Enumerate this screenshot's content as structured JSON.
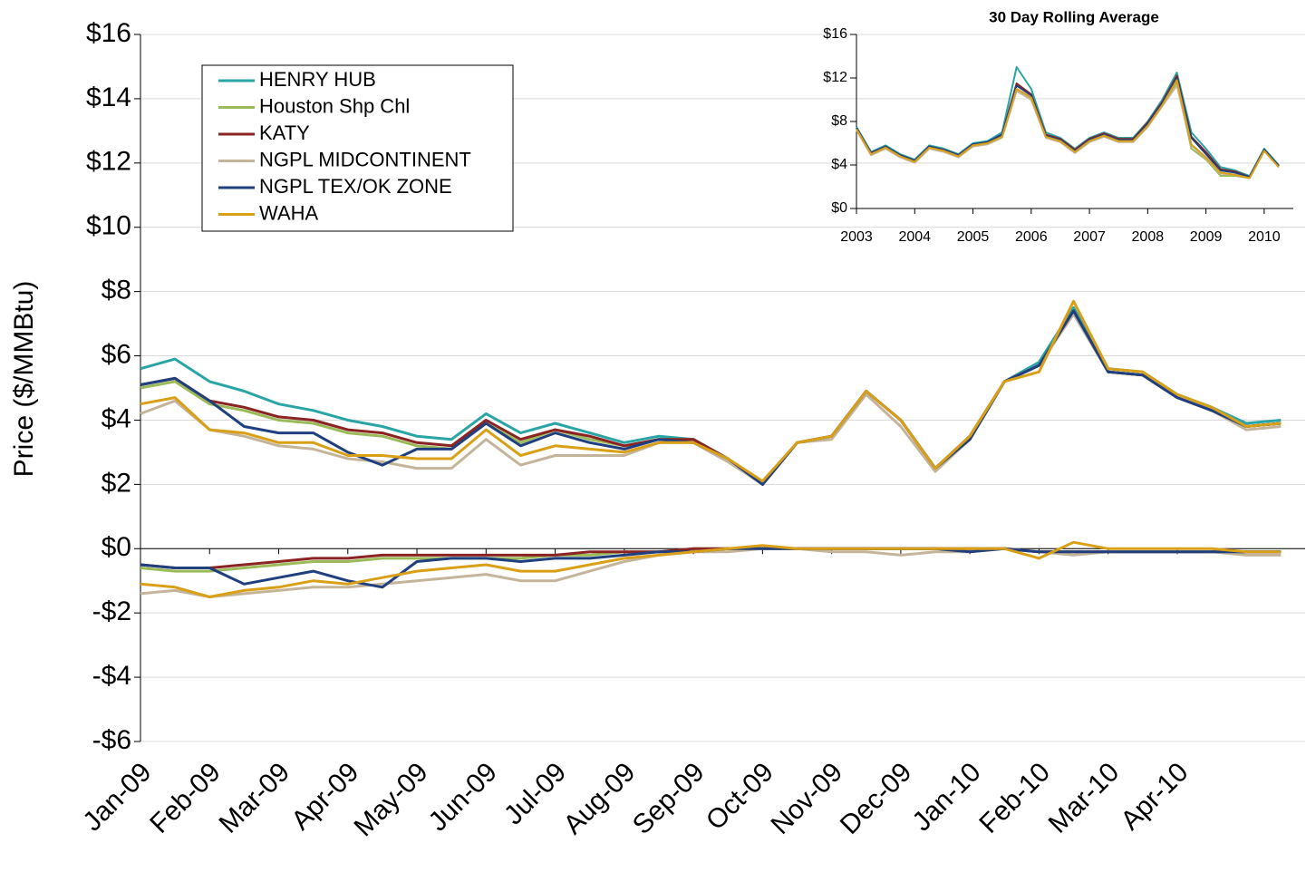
{
  "chart_data": [
    {
      "type": "line",
      "y_label": "Price ($/MMBtu)",
      "x": [
        0,
        0.5,
        1,
        1.5,
        2,
        2.5,
        3,
        3.5,
        4,
        4.5,
        5,
        5.5,
        6,
        6.5,
        7,
        7.5,
        8,
        8.5,
        9,
        9.5,
        10,
        10.5,
        11,
        11.5,
        12,
        12.5,
        13,
        13.5,
        14,
        14.5,
        15,
        15.5,
        16,
        16.5
      ],
      "xlim": [
        0,
        16.85
      ],
      "xticks": [
        {
          "value": 0,
          "label": "Jan-09"
        },
        {
          "value": 1,
          "label": "Feb-09"
        },
        {
          "value": 2,
          "label": "Mar-09"
        },
        {
          "value": 3,
          "label": "Apr-09"
        },
        {
          "value": 4,
          "label": "May-09"
        },
        {
          "value": 5,
          "label": "Jun-09"
        },
        {
          "value": 6,
          "label": "Jul-09"
        },
        {
          "value": 7,
          "label": "Aug-09"
        },
        {
          "value": 8,
          "label": "Sep-09"
        },
        {
          "value": 9,
          "label": "Oct-09"
        },
        {
          "value": 10,
          "label": "Nov-09"
        },
        {
          "value": 11,
          "label": "Dec-09"
        },
        {
          "value": 12,
          "label": "Jan-10"
        },
        {
          "value": 13,
          "label": "Feb-10"
        },
        {
          "value": 14,
          "label": "Mar-10"
        },
        {
          "value": 15,
          "label": "Apr-10"
        }
      ],
      "ylim": [
        -6,
        16
      ],
      "yticks": [
        {
          "value": -6,
          "label": "-$6"
        },
        {
          "value": -4,
          "label": "-$4"
        },
        {
          "value": -2,
          "label": "-$2"
        },
        {
          "value": 0,
          "label": "$0"
        },
        {
          "value": 2,
          "label": "$2"
        },
        {
          "value": 4,
          "label": "$4"
        },
        {
          "value": 6,
          "label": "$6"
        },
        {
          "value": 8,
          "label": "$8"
        },
        {
          "value": 10,
          "label": "$10"
        },
        {
          "value": 12,
          "label": "$12"
        },
        {
          "value": 14,
          "label": "$14"
        },
        {
          "value": 16,
          "label": "$16"
        }
      ],
      "grid": true,
      "series": [
        {
          "name": "HENRY HUB",
          "color": "#2aa5a5",
          "values": [
            5.6,
            5.9,
            5.2,
            4.9,
            4.5,
            4.3,
            4.0,
            3.8,
            3.5,
            3.4,
            4.2,
            3.6,
            3.9,
            3.6,
            3.3,
            3.5,
            3.4,
            2.8,
            2.0,
            3.3,
            3.5,
            4.9,
            4.0,
            2.5,
            3.5,
            5.2,
            5.8,
            7.5,
            5.6,
            5.5,
            4.8,
            4.4,
            3.9,
            4.0
          ]
        },
        {
          "name": "Houston Shp Chl",
          "color": "#9bbb59",
          "values": [
            5.0,
            5.2,
            4.5,
            4.3,
            4.0,
            3.9,
            3.6,
            3.5,
            3.2,
            3.1,
            3.9,
            3.3,
            3.7,
            3.4,
            3.2,
            3.4,
            3.4,
            2.8,
            2.0,
            3.3,
            3.5,
            4.9,
            4.0,
            2.5,
            3.5,
            5.2,
            5.7,
            7.4,
            5.5,
            5.4,
            4.7,
            4.3,
            3.8,
            3.9
          ]
        },
        {
          "name": "KATY",
          "color": "#8b2323",
          "values": [
            5.1,
            5.3,
            4.6,
            4.4,
            4.1,
            4.0,
            3.7,
            3.6,
            3.3,
            3.2,
            4.0,
            3.4,
            3.7,
            3.5,
            3.2,
            3.4,
            3.4,
            2.8,
            2.0,
            3.3,
            3.5,
            4.9,
            4.0,
            2.5,
            3.5,
            5.2,
            5.7,
            7.4,
            5.5,
            5.4,
            4.7,
            4.3,
            3.8,
            3.9
          ]
        },
        {
          "name": "NGPL MIDCONTINENT",
          "color": "#c4b59a",
          "values": [
            4.2,
            4.6,
            3.7,
            3.5,
            3.2,
            3.1,
            2.8,
            2.7,
            2.5,
            2.5,
            3.4,
            2.6,
            2.9,
            2.9,
            2.9,
            3.3,
            3.3,
            2.7,
            2.0,
            3.3,
            3.4,
            4.8,
            3.8,
            2.4,
            3.4,
            5.2,
            5.7,
            7.3,
            5.5,
            5.4,
            4.7,
            4.3,
            3.7,
            3.8
          ]
        },
        {
          "name": "NGPL TEX/OK ZONE",
          "color": "#1f3f7f",
          "values": [
            5.1,
            5.3,
            4.6,
            3.8,
            3.6,
            3.6,
            3.0,
            2.6,
            3.1,
            3.1,
            3.9,
            3.2,
            3.6,
            3.3,
            3.1,
            3.4,
            3.3,
            2.8,
            2.0,
            3.3,
            3.5,
            4.9,
            4.0,
            2.5,
            3.4,
            5.2,
            5.7,
            7.4,
            5.5,
            5.4,
            4.7,
            4.3,
            3.8,
            3.9
          ]
        },
        {
          "name": "WAHA",
          "color": "#d9a017",
          "values": [
            4.5,
            4.7,
            3.7,
            3.6,
            3.3,
            3.3,
            2.9,
            2.9,
            2.8,
            2.8,
            3.7,
            2.9,
            3.2,
            3.1,
            3.0,
            3.3,
            3.3,
            2.8,
            2.1,
            3.3,
            3.5,
            4.9,
            4.0,
            2.5,
            3.5,
            5.2,
            5.5,
            7.7,
            5.6,
            5.5,
            4.8,
            4.4,
            3.8,
            3.9
          ]
        },
        {
          "color": "#9bbb59",
          "values": [
            -0.6,
            -0.7,
            -0.7,
            -0.6,
            -0.5,
            -0.4,
            -0.4,
            -0.3,
            -0.3,
            -0.3,
            -0.3,
            -0.3,
            -0.2,
            -0.2,
            -0.1,
            -0.1,
            0,
            0,
            0,
            0,
            0,
            0,
            0,
            0,
            0,
            0,
            -0.1,
            -0.1,
            -0.1,
            -0.1,
            -0.1,
            -0.1,
            -0.1,
            -0.1
          ]
        },
        {
          "color": "#8b2323",
          "values": [
            -0.5,
            -0.6,
            -0.6,
            -0.5,
            -0.4,
            -0.3,
            -0.3,
            -0.2,
            -0.2,
            -0.2,
            -0.2,
            -0.2,
            -0.2,
            -0.1,
            -0.1,
            -0.1,
            0,
            0,
            0,
            0,
            0,
            0,
            0,
            0,
            0,
            0,
            -0.1,
            -0.1,
            -0.1,
            -0.1,
            -0.1,
            -0.1,
            -0.1,
            -0.1
          ]
        },
        {
          "color": "#c4b59a",
          "values": [
            -1.4,
            -1.3,
            -1.5,
            -1.4,
            -1.3,
            -1.2,
            -1.2,
            -1.1,
            -1.0,
            -0.9,
            -0.8,
            -1.0,
            -1.0,
            -0.7,
            -0.4,
            -0.2,
            -0.1,
            -0.1,
            0,
            0,
            -0.1,
            -0.1,
            -0.2,
            -0.1,
            -0.1,
            0,
            -0.1,
            -0.2,
            -0.1,
            -0.1,
            -0.1,
            -0.1,
            -0.2,
            -0.2
          ]
        },
        {
          "color": "#1f3f7f",
          "values": [
            -0.5,
            -0.6,
            -0.6,
            -1.1,
            -0.9,
            -0.7,
            -1.0,
            -1.2,
            -0.4,
            -0.3,
            -0.3,
            -0.4,
            -0.3,
            -0.3,
            -0.2,
            -0.1,
            -0.1,
            0,
            0,
            0,
            0,
            0,
            0,
            0,
            -0.1,
            0,
            -0.1,
            -0.1,
            -0.1,
            -0.1,
            -0.1,
            -0.1,
            -0.1,
            -0.1
          ]
        },
        {
          "color": "#d9a017",
          "values": [
            -1.1,
            -1.2,
            -1.5,
            -1.3,
            -1.2,
            -1.0,
            -1.1,
            -0.9,
            -0.7,
            -0.6,
            -0.5,
            -0.7,
            -0.7,
            -0.5,
            -0.3,
            -0.2,
            -0.1,
            0,
            0.1,
            0,
            0,
            0,
            0,
            0,
            0,
            0,
            -0.3,
            0.2,
            0,
            0,
            0,
            0,
            -0.1,
            -0.1
          ]
        }
      ]
    },
    {
      "type": "line",
      "title": "30 Day Rolling Average",
      "x": [
        2003,
        2003.25,
        2003.5,
        2003.75,
        2004,
        2004.25,
        2004.5,
        2004.75,
        2005,
        2005.25,
        2005.5,
        2005.75,
        2006,
        2006.25,
        2006.5,
        2006.75,
        2007,
        2007.25,
        2007.5,
        2007.75,
        2008,
        2008.25,
        2008.5,
        2008.75,
        2009,
        2009.25,
        2009.5,
        2009.75,
        2010,
        2010.25
      ],
      "xlim": [
        2003,
        2010.5
      ],
      "xticks": [
        2003,
        2004,
        2005,
        2006,
        2007,
        2008,
        2009,
        2010
      ],
      "ylim": [
        0,
        16
      ],
      "yticks": [
        {
          "value": 0,
          "label": "$0"
        },
        {
          "value": 4,
          "label": "$4"
        },
        {
          "value": 8,
          "label": "$8"
        },
        {
          "value": 12,
          "label": "$12"
        },
        {
          "value": 16,
          "label": "$16"
        }
      ],
      "series": [
        {
          "color": "#2aa5a5",
          "values": [
            7.5,
            5.2,
            5.8,
            5.0,
            4.5,
            5.8,
            5.5,
            5.0,
            6.0,
            6.2,
            7.0,
            13.0,
            11.0,
            7.0,
            6.5,
            5.5,
            6.5,
            7.0,
            6.5,
            6.5,
            8.0,
            10.0,
            12.5,
            7.0,
            5.5,
            3.8,
            3.5,
            3.0,
            5.5,
            4.0
          ]
        },
        {
          "color": "#9bbb59",
          "values": [
            7.3,
            5.0,
            5.6,
            4.8,
            4.3,
            5.6,
            5.3,
            4.8,
            5.8,
            6.0,
            6.6,
            11.0,
            10.2,
            6.6,
            6.2,
            5.2,
            6.2,
            6.7,
            6.2,
            6.2,
            7.6,
            9.5,
            11.5,
            5.5,
            4.5,
            3.0,
            3.0,
            2.8,
            5.3,
            3.9
          ]
        },
        {
          "color": "#8b2323",
          "values": [
            7.4,
            5.1,
            5.7,
            4.9,
            4.4,
            5.7,
            5.4,
            4.9,
            5.9,
            6.1,
            6.8,
            11.5,
            10.5,
            6.8,
            6.4,
            5.4,
            6.4,
            6.9,
            6.4,
            6.4,
            7.9,
            9.8,
            12.2,
            6.6,
            5.2,
            3.6,
            3.4,
            2.9,
            5.4,
            3.9
          ]
        },
        {
          "color": "#c4b59a",
          "values": [
            7.2,
            4.9,
            5.5,
            4.7,
            4.2,
            5.5,
            5.2,
            4.7,
            5.7,
            5.9,
            6.5,
            10.8,
            10.0,
            6.5,
            6.1,
            5.1,
            6.1,
            6.6,
            6.1,
            6.1,
            7.5,
            9.4,
            11.3,
            5.8,
            4.6,
            3.2,
            3.1,
            2.8,
            5.3,
            3.8
          ]
        },
        {
          "color": "#1f3f7f",
          "values": [
            7.4,
            5.1,
            5.7,
            4.9,
            4.4,
            5.7,
            5.4,
            4.9,
            5.9,
            6.1,
            6.8,
            11.3,
            10.4,
            6.7,
            6.3,
            5.3,
            6.3,
            6.8,
            6.3,
            6.3,
            7.8,
            9.7,
            12.0,
            6.5,
            5.0,
            3.5,
            3.3,
            2.9,
            5.4,
            3.9
          ]
        },
        {
          "color": "#d9a017",
          "values": [
            7.3,
            5.0,
            5.6,
            4.8,
            4.3,
            5.6,
            5.3,
            4.8,
            5.8,
            6.0,
            6.6,
            11.0,
            10.2,
            6.6,
            6.2,
            5.2,
            6.2,
            6.7,
            6.2,
            6.2,
            7.6,
            9.5,
            11.8,
            5.9,
            4.7,
            3.3,
            3.1,
            2.8,
            5.3,
            3.8
          ]
        }
      ]
    }
  ]
}
